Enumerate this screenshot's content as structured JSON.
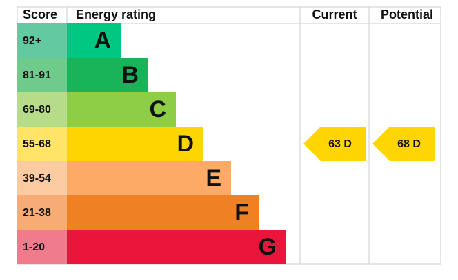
{
  "header": {
    "score": "Score",
    "rating": "Energy rating",
    "current": "Current",
    "potential": "Potential"
  },
  "rows": [
    {
      "score": "92+",
      "letter": "A",
      "score_color": "#62c9a0",
      "bar_color": "#00c781"
    },
    {
      "score": "81-91",
      "letter": "B",
      "score_color": "#6fcb8b",
      "bar_color": "#19b459"
    },
    {
      "score": "69-80",
      "letter": "C",
      "score_color": "#b6dc8a",
      "bar_color": "#8dce46"
    },
    {
      "score": "55-68",
      "letter": "D",
      "score_color": "#ffe467",
      "bar_color": "#ffd500"
    },
    {
      "score": "39-54",
      "letter": "E",
      "score_color": "#fdcba2",
      "bar_color": "#fcaa65"
    },
    {
      "score": "21-38",
      "letter": "F",
      "score_color": "#f7ac74",
      "bar_color": "#ef8023"
    },
    {
      "score": "1-20",
      "letter": "G",
      "score_color": "#f07b8d",
      "bar_color": "#e9153b"
    }
  ],
  "current": {
    "label": "63 D",
    "color": "#ffd500"
  },
  "potential": {
    "label": "68 D",
    "color": "#ffd500"
  }
}
